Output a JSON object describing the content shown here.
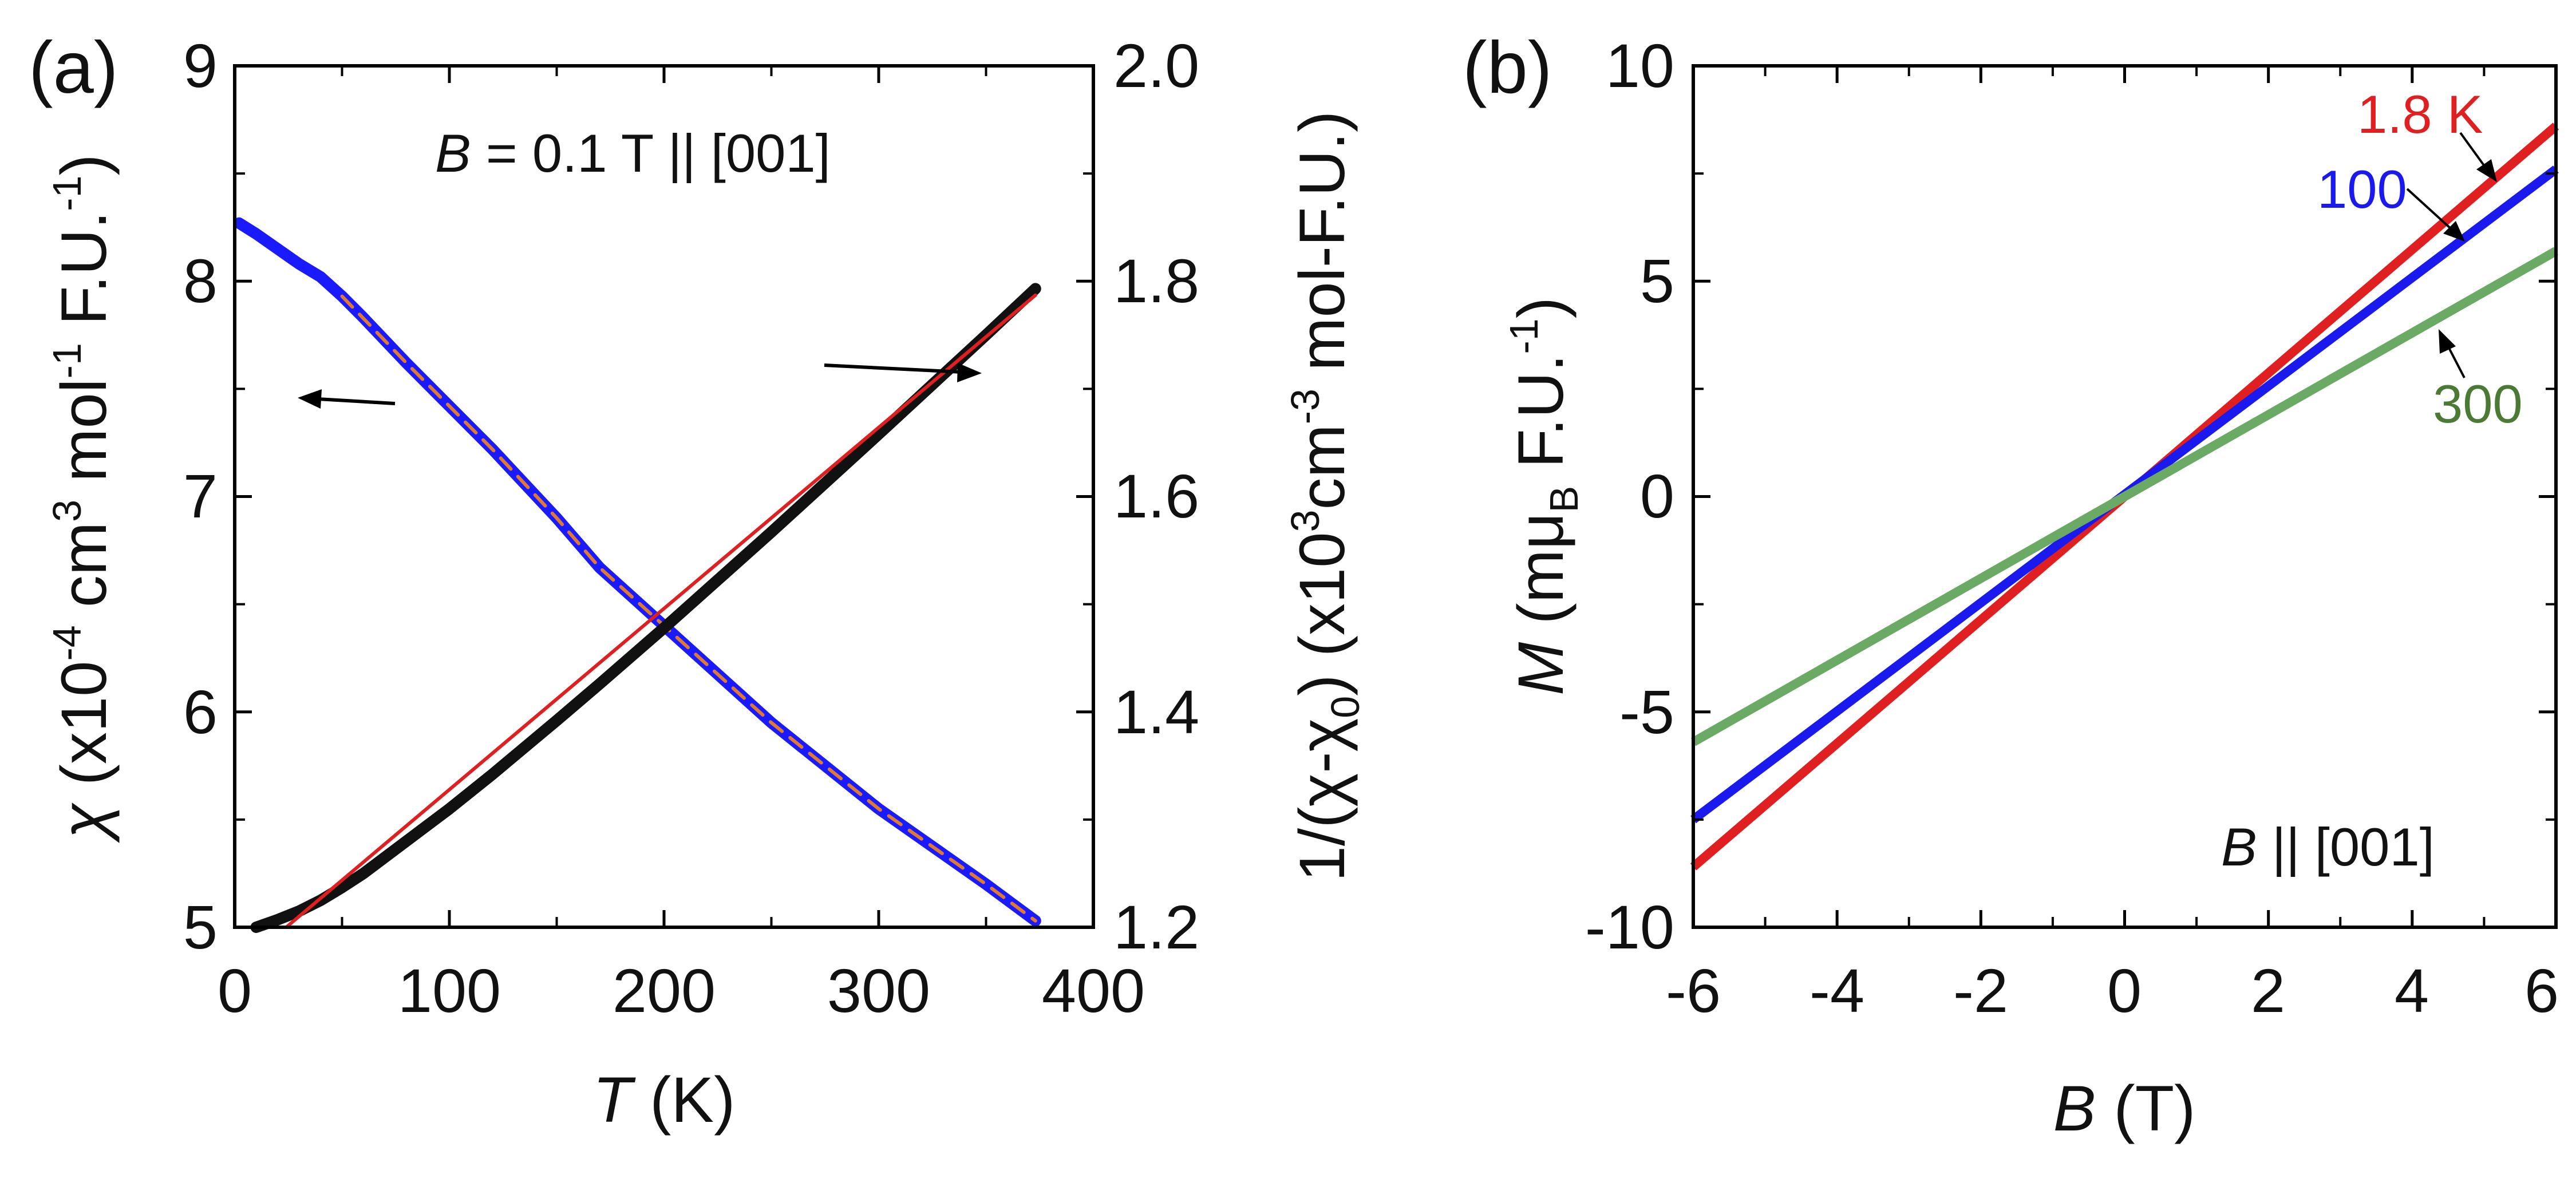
{
  "chart_data": [
    {
      "panel_label": "(a)",
      "type": "scatter",
      "annotation": {
        "var": "B",
        "text": " = 0.1 T || [001]"
      },
      "xlabel": {
        "var": "T",
        "unit": " (K)"
      },
      "xlim": [
        0,
        400
      ],
      "xticks": [
        "0",
        "100",
        "200",
        "300",
        "400"
      ],
      "ylabel_left": {
        "sym": "χ",
        "p1": " (x10",
        "e1": "-4",
        "p2": " cm",
        "e2": "3",
        "p3": " mol",
        "e3": "-1",
        "p4": " F.U.",
        "e4": "-1",
        "p5": ")"
      },
      "ylim_left": [
        5,
        9
      ],
      "yticks_left": [
        "5",
        "6",
        "7",
        "8",
        "9"
      ],
      "ylabel_right": {
        "p1": "1/(χ-χ",
        "s1": "0",
        "p2": ") (x10",
        "e1": "3",
        "p3": "cm",
        "e2": "-3",
        "p4": " mol-F.U.)"
      },
      "ylim_right": [
        1.2,
        2.0
      ],
      "yticks_right": [
        "1.2",
        "1.4",
        "1.6",
        "1.8",
        "2.0"
      ],
      "series": [
        {
          "name": "chi",
          "axis": "left",
          "color": "#1a1aff",
          "x": [
            2,
            10,
            20,
            30,
            40,
            50,
            60,
            80,
            100,
            120,
            150,
            170,
            200,
            250,
            300,
            350,
            373
          ],
          "y": [
            8.27,
            8.22,
            8.15,
            8.08,
            8.02,
            7.93,
            7.83,
            7.62,
            7.42,
            7.22,
            6.9,
            6.67,
            6.4,
            5.95,
            5.55,
            5.2,
            5.03
          ]
        },
        {
          "name": "chi-fit",
          "axis": "left",
          "color": "#e07a30",
          "dashed": true,
          "x": [
            50,
            80,
            100,
            120,
            150,
            170,
            200,
            250,
            300,
            350,
            373
          ],
          "y": [
            7.93,
            7.62,
            7.42,
            7.22,
            6.9,
            6.67,
            6.4,
            5.95,
            5.55,
            5.2,
            5.03
          ]
        },
        {
          "name": "inverse-chi",
          "axis": "right",
          "color": "#111111",
          "x": [
            10,
            20,
            30,
            40,
            50,
            60,
            80,
            100,
            120,
            150,
            170,
            200,
            250,
            300,
            350,
            373
          ],
          "y": [
            1.2,
            1.207,
            1.215,
            1.225,
            1.237,
            1.25,
            1.28,
            1.31,
            1.342,
            1.392,
            1.426,
            1.478,
            1.567,
            1.658,
            1.75,
            1.793
          ]
        },
        {
          "name": "inverse-chi-fit",
          "axis": "right",
          "color": "#e02020",
          "x": [
            24,
            373
          ],
          "y": [
            1.2,
            1.787
          ]
        }
      ]
    },
    {
      "panel_label": "(b)",
      "type": "line",
      "annotation": {
        "var": "B",
        "text": " || [001]"
      },
      "xlabel": {
        "var": "B",
        "unit": " (T)"
      },
      "xlim": [
        -6,
        6
      ],
      "xticks": [
        "-6",
        "-4",
        "-2",
        "0",
        "2",
        "4",
        "6"
      ],
      "ylabel": {
        "var": "M",
        "p1": " (m",
        "mu": "μ",
        "s1": "B",
        "p2": " F.U.",
        "e1": "-1",
        "p3": ")"
      },
      "ylim": [
        -10,
        10
      ],
      "yticks": [
        "-10",
        "-5",
        "0",
        "5",
        "10"
      ],
      "series": [
        {
          "name": "1.8 K",
          "label": "1.8 K",
          "color": "#e02020",
          "x": [
            -6,
            6
          ],
          "y": [
            -8.6,
            8.6
          ]
        },
        {
          "name": "100",
          "label": "100",
          "color": "#1a1aee",
          "x": [
            -6,
            6
          ],
          "y": [
            -7.5,
            7.6
          ]
        },
        {
          "name": "300",
          "label": "300",
          "color": "#6aaa64",
          "x": [
            -6,
            6
          ],
          "y": [
            -5.7,
            5.7
          ]
        }
      ]
    }
  ]
}
